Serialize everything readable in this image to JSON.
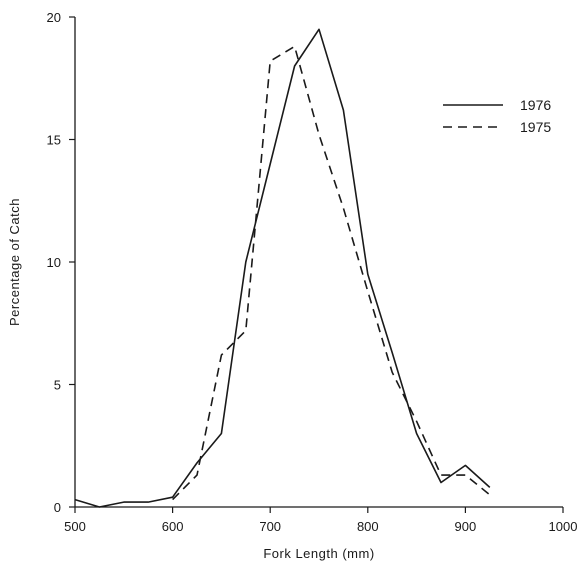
{
  "chart_data": {
    "type": "line",
    "title": "",
    "xlabel": "Fork Length (mm)",
    "ylabel": "Percentage of Catch",
    "xlim": [
      500,
      1000
    ],
    "ylim": [
      0,
      20
    ],
    "xticks": [
      500,
      600,
      700,
      800,
      900,
      1000
    ],
    "yticks": [
      0,
      5,
      10,
      15,
      20
    ],
    "grid": false,
    "legend_position": "top-right",
    "series": [
      {
        "name": "1976",
        "style": "solid",
        "color": "#1a1a1a",
        "x": [
          500,
          525,
          550,
          575,
          600,
          625,
          650,
          675,
          700,
          725,
          750,
          775,
          800,
          825,
          850,
          875,
          900,
          925
        ],
        "y": [
          0.3,
          0.0,
          0.2,
          0.2,
          0.4,
          1.8,
          3.0,
          10.0,
          14.0,
          18.0,
          19.5,
          16.2,
          9.5,
          6.3,
          3.0,
          1.0,
          1.7,
          0.8
        ]
      },
      {
        "name": "1975",
        "style": "dashed",
        "color": "#1a1a1a",
        "x": [
          600,
          625,
          650,
          675,
          700,
          725,
          750,
          775,
          800,
          825,
          850,
          875,
          900,
          925
        ],
        "y": [
          0.3,
          1.3,
          6.2,
          7.2,
          18.2,
          18.8,
          15.2,
          12.2,
          8.8,
          5.5,
          3.5,
          1.3,
          1.3,
          0.5
        ]
      }
    ]
  }
}
